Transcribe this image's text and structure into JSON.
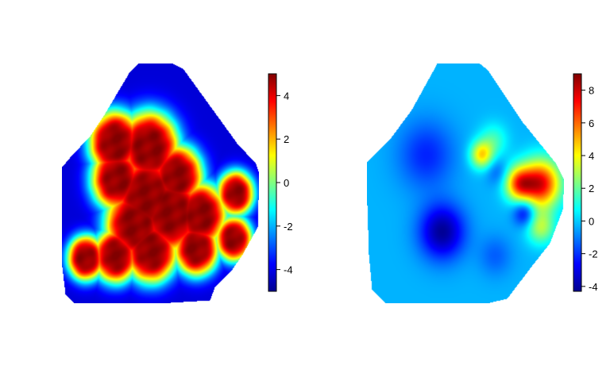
{
  "chart_data": [
    {
      "type": "heatmap",
      "title": "",
      "xlabel": "",
      "ylabel": "",
      "colormap": "jet",
      "colorbar": {
        "range": [
          -5,
          5
        ],
        "ticks": [
          4,
          2,
          0,
          -2,
          -4
        ],
        "tick_labels": [
          "4",
          "2",
          "0",
          "-2",
          "-4"
        ]
      },
      "hotspots": [
        {
          "x": 0.27,
          "y": 0.33,
          "value": 4.8,
          "spread": 0.07
        },
        {
          "x": 0.44,
          "y": 0.35,
          "value": 4.6,
          "spread": 0.08
        },
        {
          "x": 0.43,
          "y": 0.55,
          "value": 4.7,
          "spread": 0.09
        },
        {
          "x": 0.55,
          "y": 0.62,
          "value": 4.6,
          "spread": 0.09
        },
        {
          "x": 0.7,
          "y": 0.63,
          "value": 4.6,
          "spread": 0.07
        },
        {
          "x": 0.28,
          "y": 0.48,
          "value": 4.2,
          "spread": 0.07
        },
        {
          "x": 0.58,
          "y": 0.47,
          "value": 4.3,
          "spread": 0.07
        },
        {
          "x": 0.88,
          "y": 0.54,
          "value": 3.6,
          "spread": 0.05
        },
        {
          "x": 0.12,
          "y": 0.81,
          "value": 4.0,
          "spread": 0.05
        },
        {
          "x": 0.27,
          "y": 0.8,
          "value": 4.3,
          "spread": 0.06
        },
        {
          "x": 0.45,
          "y": 0.78,
          "value": 4.6,
          "spread": 0.07
        },
        {
          "x": 0.68,
          "y": 0.77,
          "value": 4.3,
          "spread": 0.06
        },
        {
          "x": 0.87,
          "y": 0.73,
          "value": 3.8,
          "spread": 0.05
        },
        {
          "x": 0.37,
          "y": 0.67,
          "value": 4.6,
          "spread": 0.08
        }
      ],
      "background_value": -4.2,
      "blend_sharpness": 3
    },
    {
      "type": "heatmap",
      "title": "",
      "xlabel": "",
      "ylabel": "",
      "colormap": "jet",
      "colorbar": {
        "range": [
          -4.3,
          9
        ],
        "ticks": [
          8,
          6,
          4,
          2,
          0,
          -2,
          -4
        ],
        "tick_labels": [
          "8",
          "6",
          "4",
          "2",
          "0",
          "-2",
          "-4"
        ]
      },
      "hotspots": [
        {
          "x": 0.88,
          "y": 0.5,
          "value": 7.6,
          "spread": 0.07
        },
        {
          "x": 0.77,
          "y": 0.5,
          "value": 5.5,
          "spread": 0.05
        },
        {
          "x": 0.58,
          "y": 0.38,
          "value": 4.3,
          "spread": 0.04
        },
        {
          "x": 0.64,
          "y": 0.32,
          "value": 1.5,
          "spread": 0.05
        },
        {
          "x": 0.88,
          "y": 0.68,
          "value": 3.0,
          "spread": 0.05
        },
        {
          "x": 0.38,
          "y": 0.7,
          "value": -4.2,
          "spread": 0.08
        },
        {
          "x": 0.3,
          "y": 0.38,
          "value": -2.2,
          "spread": 0.1
        },
        {
          "x": 0.8,
          "y": 0.62,
          "value": -3.4,
          "spread": 0.04
        },
        {
          "x": 0.66,
          "y": 0.45,
          "value": -1.5,
          "spread": 0.04
        },
        {
          "x": 0.65,
          "y": 0.8,
          "value": -1.4,
          "spread": 0.06
        }
      ],
      "background_value": -0.3,
      "blend_sharpness": 0
    }
  ]
}
